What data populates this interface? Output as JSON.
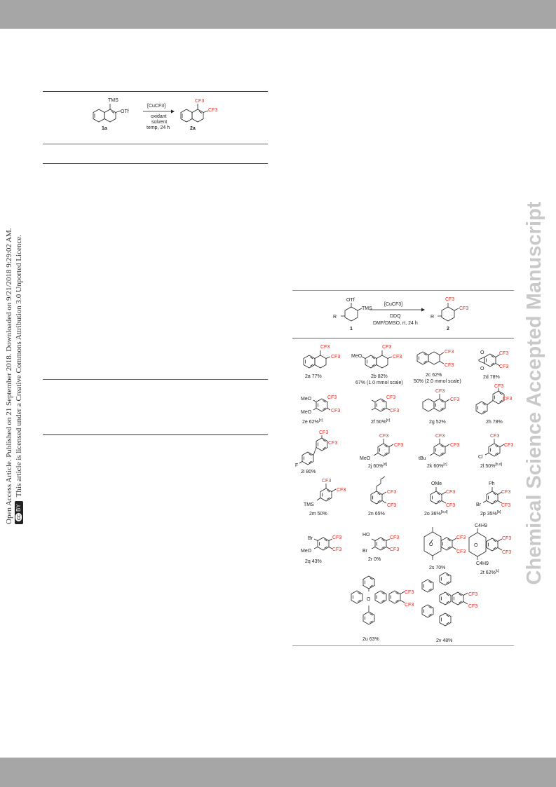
{
  "sidebar": {
    "line1": "Open Access Article. Published on 21 September 2018. Downloaded on 9/21/2018 9:29:02 AM.",
    "line2": "This article is licensed under a Creative Commons Attribution 3.0 Unported Licence.",
    "badge_cc": "cc",
    "badge_by": "BY"
  },
  "watermark": "Chemical Science Accepted Manuscript",
  "table_scheme": {
    "reagent": "[CuCF3]",
    "conditions": [
      "oxidant",
      "solvent",
      "temp, 24 h"
    ],
    "substituents": [
      "TMS",
      "OTf"
    ],
    "product_groups": [
      "CF3",
      "CF3"
    ],
    "start_label": "1a",
    "product_label": "2a"
  },
  "scope_scheme": {
    "reagent": "[CuCF3]",
    "conditions": [
      "DDQ",
      "DMF/DMSO, rt, 24 h"
    ],
    "substituents": [
      "OTf",
      "TMS",
      "R"
    ],
    "start_label": "1",
    "product_label": "2"
  },
  "compounds": [
    {
      "id": "2a",
      "text": "2a 77%",
      "sup": ""
    },
    {
      "id": "2b",
      "text": "2b 82%",
      "sup": "",
      "note": "67% (1.0 mmol scale)"
    },
    {
      "id": "2c",
      "text": "2c 62%",
      "sup": "",
      "note": "50% (2.0 mmol scale)"
    },
    {
      "id": "2d",
      "text": "2d 78%",
      "sup": ""
    },
    {
      "id": "2e",
      "text": "2e 62%",
      "sup": "[c]"
    },
    {
      "id": "2f",
      "text": "2f 50%",
      "sup": "[c]"
    },
    {
      "id": "2g",
      "text": "2g 52%",
      "sup": ""
    },
    {
      "id": "2h",
      "text": "2h 78%",
      "sup": ""
    },
    {
      "id": "2i",
      "text": "2i 80%",
      "sup": ""
    },
    {
      "id": "2j",
      "text": "2j 60%",
      "sup": "[d]"
    },
    {
      "id": "2k",
      "text": "2k 60%",
      "sup": "[c]"
    },
    {
      "id": "2l",
      "text": "2l 50%",
      "sup": "[b,d]"
    },
    {
      "id": "2m",
      "text": "2m 50%",
      "sup": ""
    },
    {
      "id": "2n",
      "text": "2n 65%",
      "sup": ""
    },
    {
      "id": "2o",
      "text": "2o 36%",
      "sup": "[b,d]"
    },
    {
      "id": "2p",
      "text": "2p 35%",
      "sup": "[b]"
    },
    {
      "id": "2q",
      "text": "2q 43%",
      "sup": ""
    },
    {
      "id": "2r",
      "text": "2r 0%",
      "sup": ""
    },
    {
      "id": "2s",
      "text": "2s 70%",
      "sup": ""
    },
    {
      "id": "2t",
      "text": "2t 62%",
      "sup": "[c]"
    },
    {
      "id": "2u",
      "text": "2u 63%",
      "sup": ""
    },
    {
      "id": "2v",
      "text": "2v 48%",
      "sup": ""
    }
  ],
  "group_labels": {
    "cf3": "CF3",
    "meo": "MeO",
    "tbu": "tBu",
    "tms": "TMS",
    "f": "F",
    "cl": "Cl",
    "br": "Br",
    "ho": "HO",
    "ome": "OMe",
    "ph": "Ph",
    "c4h9": "C4H9",
    "o": "O"
  }
}
